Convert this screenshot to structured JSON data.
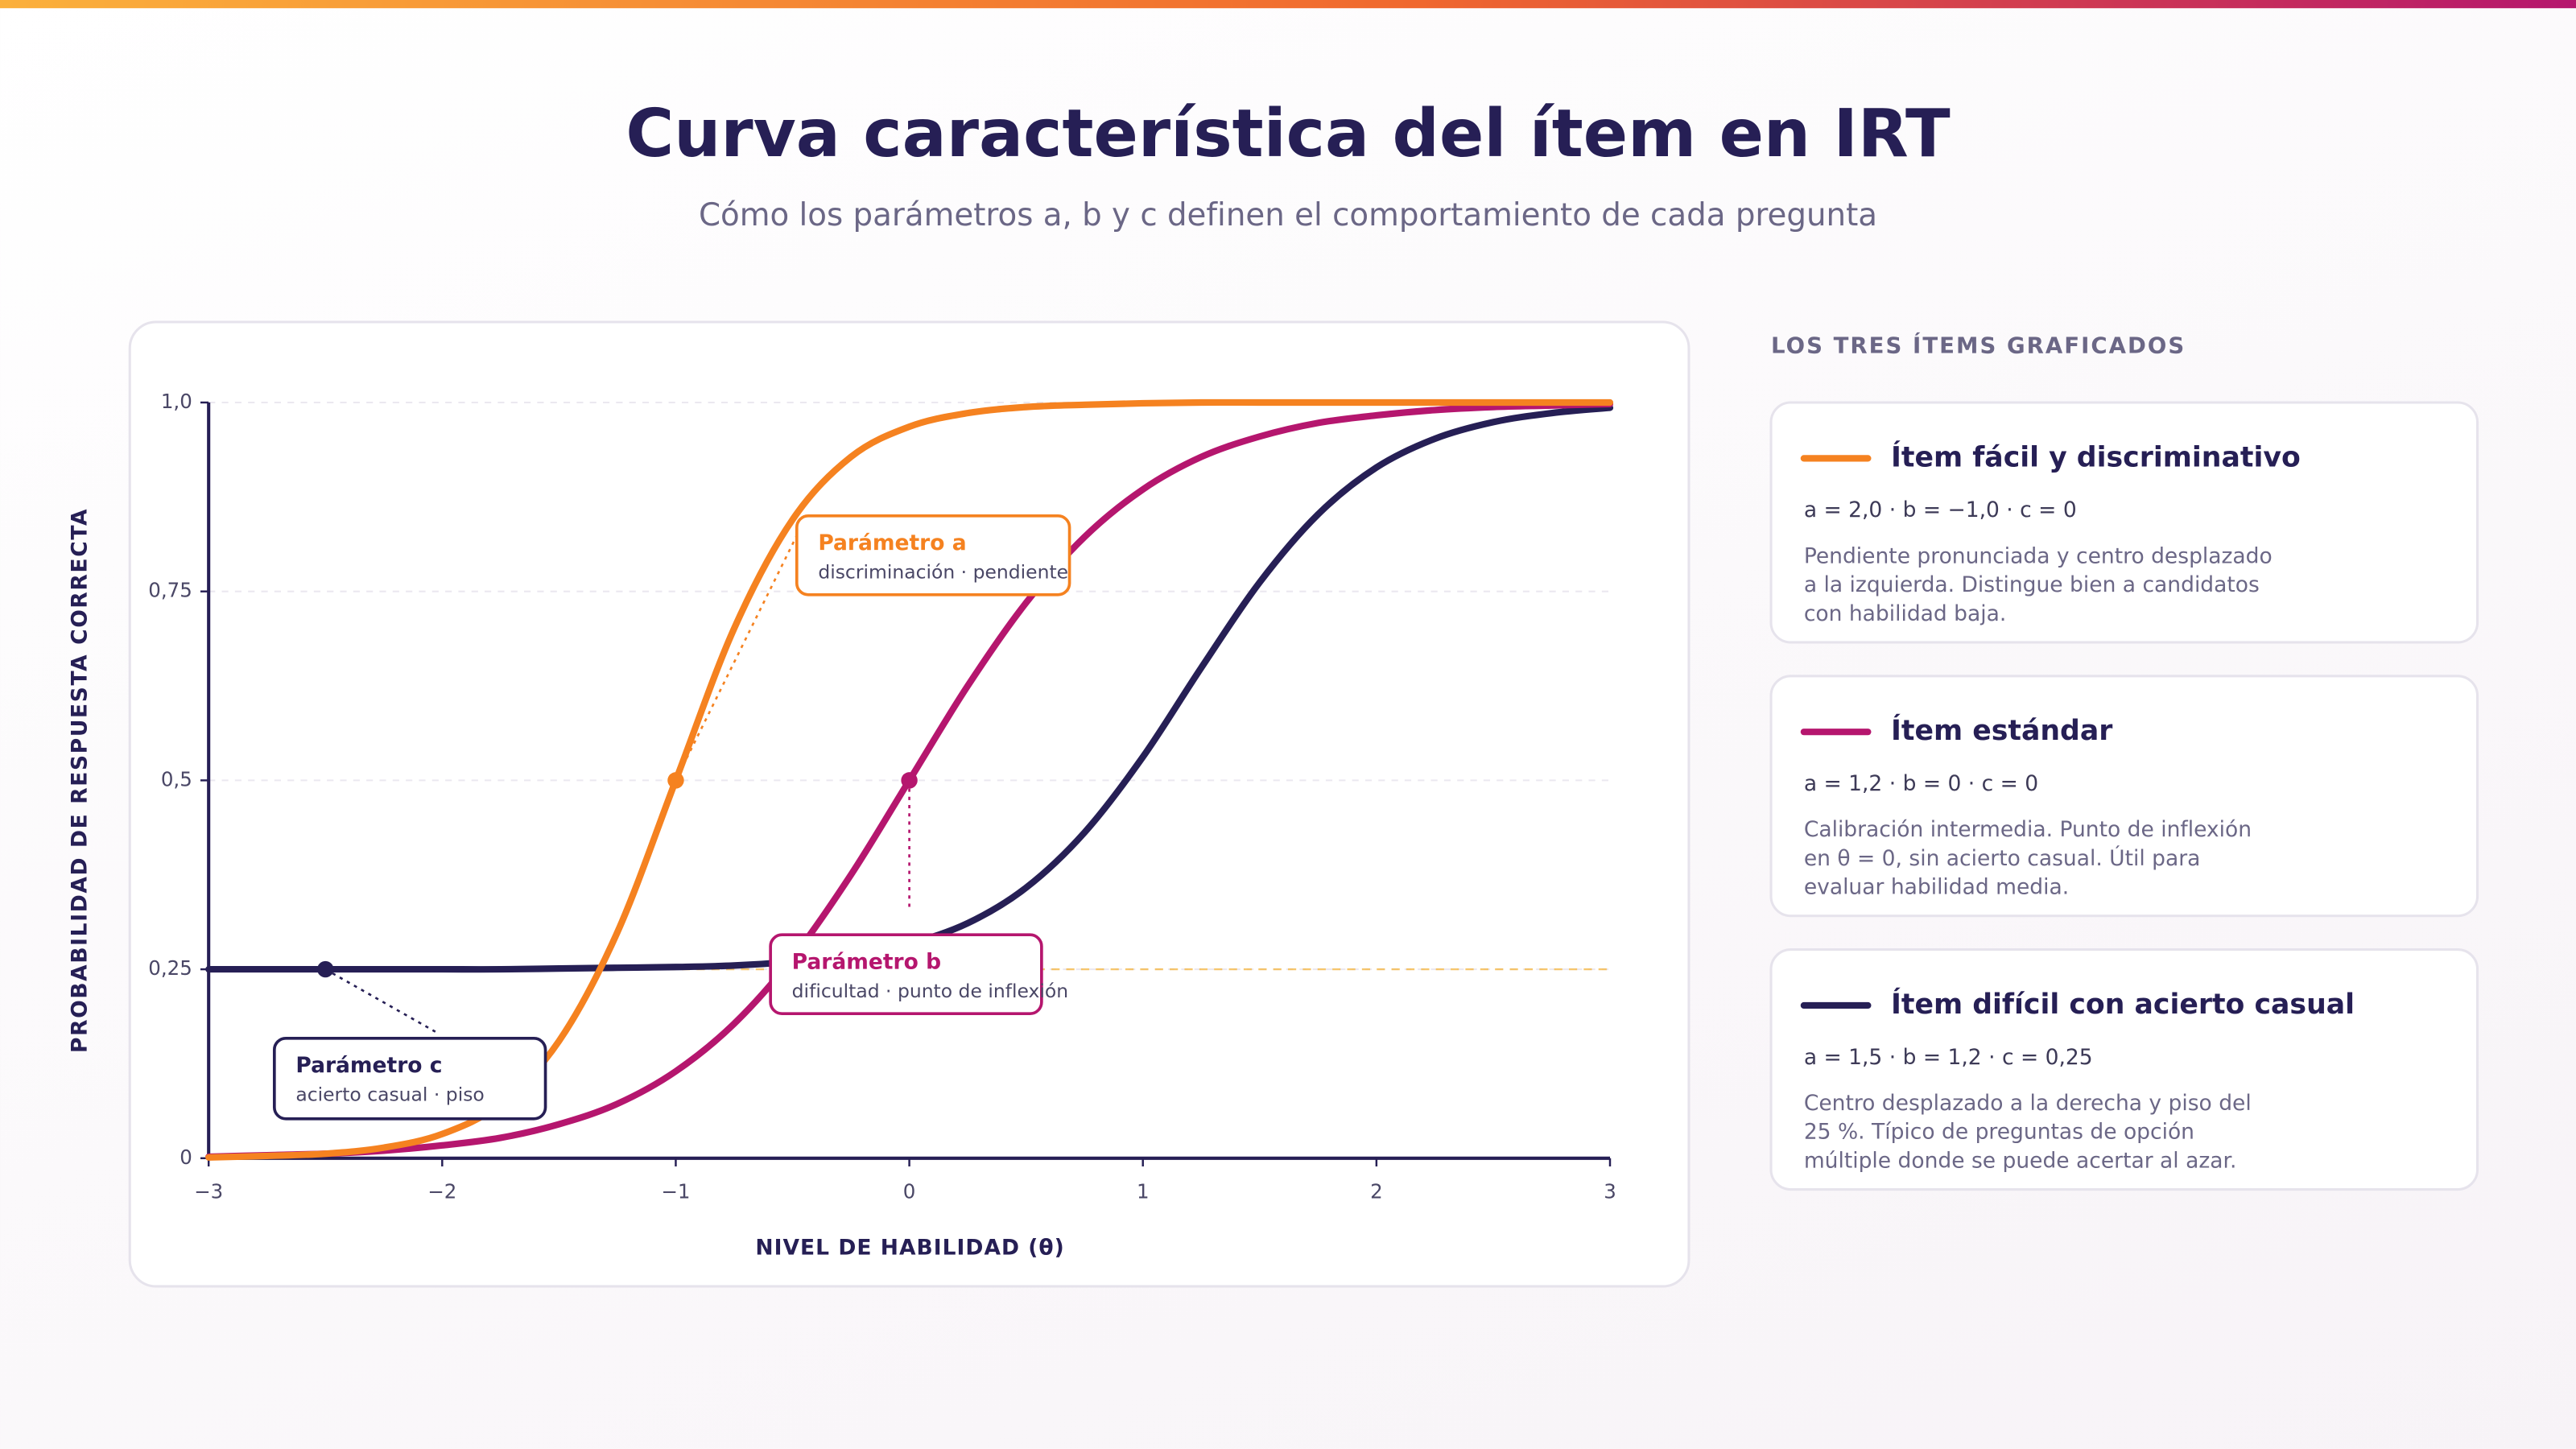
{
  "chart_data": {
    "type": "line",
    "title": "Curva característica del ítem en IRT",
    "subtitle": "Cómo los parámetros a, b y c definen el comportamiento de cada pregunta",
    "xlabel": "NIVEL DE HABILIDAD (θ)",
    "ylabel": "PROBABILIDAD DE RESPUESTA CORRECTA",
    "x": [
      -3,
      -2.75,
      -2.5,
      -2.25,
      -2,
      -1.75,
      -1.5,
      -1.25,
      -1,
      -0.75,
      -0.5,
      -0.25,
      0,
      0.25,
      0.5,
      0.75,
      1,
      1.25,
      1.5,
      1.75,
      2,
      2.25,
      2.5,
      2.75,
      3
    ],
    "xlim": [
      -3,
      3
    ],
    "xticks": [
      {
        "value": -3,
        "label": "−3"
      },
      {
        "value": -2,
        "label": "−2"
      },
      {
        "value": -1,
        "label": "−1"
      },
      0,
      1,
      2,
      3
    ],
    "ylim": [
      0,
      1
    ],
    "yticks": [
      0,
      {
        "value": 0.25,
        "label": "0,25"
      },
      {
        "value": 0.5,
        "label": "0,5"
      },
      {
        "value": 0.75,
        "label": "0,75"
      },
      {
        "value": 1,
        "label": "1,0"
      }
    ],
    "grid": true,
    "legend_title": "LOS TRES ÍTEMS GRAFICADOS",
    "series": [
      {
        "name": "Ítem fácil y discriminativo",
        "color": "#f58220",
        "params": "a = 2,0 · b = −1,0 · c = 0",
        "description": [
          "Pendiente pronunciada y centro desplazado",
          "a la izquierda. Distingue bien a candidatos",
          "con habilidad baja."
        ],
        "values": [
          0.001,
          0.003,
          0.006,
          0.014,
          0.032,
          0.072,
          0.155,
          0.299,
          0.5,
          0.701,
          0.845,
          0.928,
          0.968,
          0.986,
          0.994,
          0.997,
          0.999,
          1.0,
          1.0,
          1.0,
          1.0,
          1.0,
          1.0,
          1.0,
          1.0
        ]
      },
      {
        "name": "Ítem estándar",
        "color": "#b5166e",
        "params": "a = 1,2 · b = 0 · c = 0",
        "description": [
          "Calibración intermedia. Punto de inflexión",
          "en θ = 0, sin acierto casual. Útil para",
          "evaluar habilidad media."
        ],
        "values": [
          0.002,
          0.004,
          0.006,
          0.01,
          0.017,
          0.027,
          0.045,
          0.072,
          0.115,
          0.178,
          0.265,
          0.375,
          0.5,
          0.625,
          0.735,
          0.822,
          0.885,
          0.928,
          0.955,
          0.973,
          0.983,
          0.99,
          0.994,
          0.996,
          0.998
        ]
      },
      {
        "name": "Ítem difícil con acierto casual",
        "color": "#261f55",
        "params": "a = 1,5 · b = 1,2 · c = 0,25",
        "description": [
          "Centro desplazado a la derecha y piso del",
          "25 %. Típico de preguntas de opción",
          "múltiple donde se puede acertar al azar."
        ],
        "values": [
          0.25,
          0.25,
          0.25,
          0.25,
          0.25,
          0.25,
          0.251,
          0.252,
          0.253,
          0.255,
          0.26,
          0.268,
          0.284,
          0.311,
          0.358,
          0.431,
          0.531,
          0.649,
          0.762,
          0.852,
          0.914,
          0.952,
          0.974,
          0.986,
          0.993
        ]
      }
    ],
    "reference_line": {
      "y": 0.25,
      "color": "#f5b94a"
    },
    "annotations": [
      {
        "title": "Parámetro a",
        "text": "discriminación · pendiente",
        "x": -1,
        "y": 0.5,
        "color": "#f58220"
      },
      {
        "title": "Parámetro b",
        "text": "dificultad · punto de inflexión",
        "x": 0,
        "y": 0.5,
        "color": "#b5166e"
      },
      {
        "title": "Parámetro c",
        "text": "acierto casual · piso",
        "x": -2.5,
        "y": 0.25,
        "color": "#261f55"
      }
    ]
  }
}
